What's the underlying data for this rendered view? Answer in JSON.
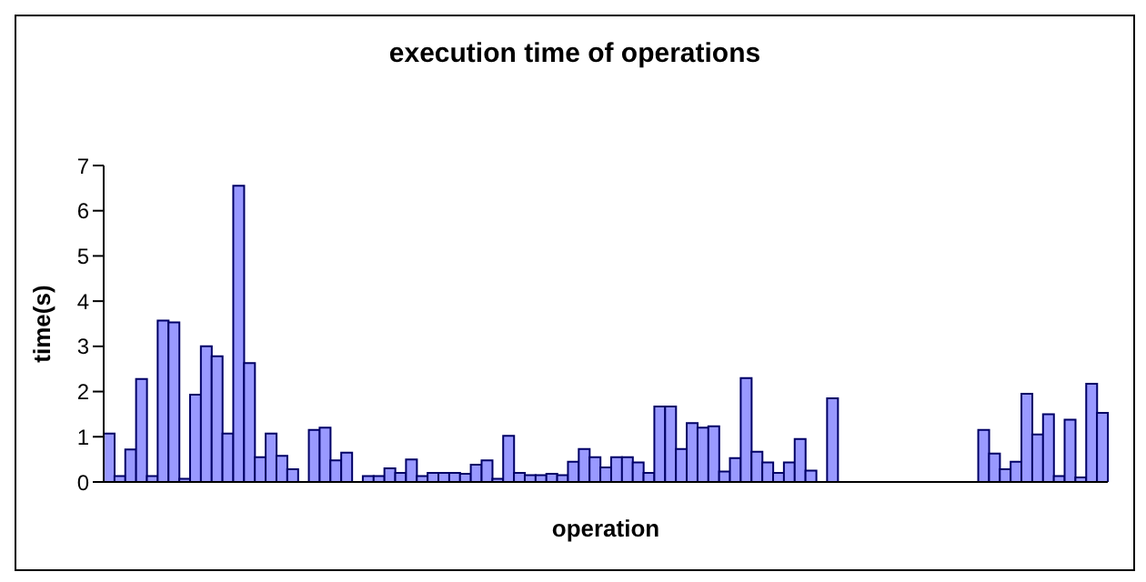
{
  "chart_data": {
    "type": "bar",
    "title": "execution time of operations",
    "xlabel": "operation",
    "ylabel": "time(s)",
    "categories": [
      null,
      null,
      null,
      null,
      null,
      null,
      null,
      null,
      null,
      null,
      null,
      null,
      null,
      null,
      null,
      null,
      null,
      null,
      null,
      null,
      null,
      null,
      null,
      null,
      null,
      null,
      null,
      null,
      null,
      null,
      null,
      null,
      null,
      null,
      null,
      null,
      null,
      null,
      null,
      null,
      null,
      null,
      null,
      null,
      null,
      null,
      null,
      null,
      null,
      null,
      null,
      null,
      null,
      null,
      null,
      null,
      null,
      null,
      null,
      null,
      null,
      null,
      null,
      null,
      null,
      null,
      null,
      null,
      null,
      null,
      null,
      null,
      null,
      null,
      null,
      null,
      null,
      null,
      null,
      null,
      null,
      null,
      null,
      null,
      null,
      null,
      null,
      null,
      null,
      null,
      null,
      null,
      null
    ],
    "values": [
      1.07,
      0.13,
      0.72,
      2.28,
      0.13,
      3.57,
      3.53,
      0.07,
      1.93,
      3.0,
      2.78,
      1.07,
      6.55,
      2.63,
      0.55,
      1.07,
      0.58,
      0.28,
      0,
      1.15,
      1.2,
      0.48,
      0.65,
      0,
      0.13,
      0.13,
      0.3,
      0.2,
      0.5,
      0.13,
      0.2,
      0.2,
      0.2,
      0.18,
      0.38,
      0.48,
      0.07,
      1.02,
      0.2,
      0.15,
      0.15,
      0.18,
      0.15,
      0.45,
      0.73,
      0.55,
      0.32,
      0.55,
      0.55,
      0.43,
      0.2,
      1.67,
      1.67,
      0.73,
      1.3,
      1.2,
      1.23,
      0.23,
      0.53,
      2.3,
      0.67,
      0.43,
      0.2,
      0.43,
      0.95,
      0.25,
      0,
      1.85,
      0,
      0,
      0,
      0,
      0,
      0,
      0,
      0,
      0,
      0,
      0,
      0,
      0,
      1.15,
      0.63,
      0.28,
      0.45,
      1.95,
      1.05,
      1.5,
      0.13,
      1.38,
      0.1,
      2.17,
      1.53
    ],
    "color": "#9999ff",
    "ylim": [
      0,
      7
    ],
    "yticks": [
      0,
      1,
      2,
      3,
      4,
      5,
      6,
      7
    ],
    "grid": false,
    "legend": false
  }
}
